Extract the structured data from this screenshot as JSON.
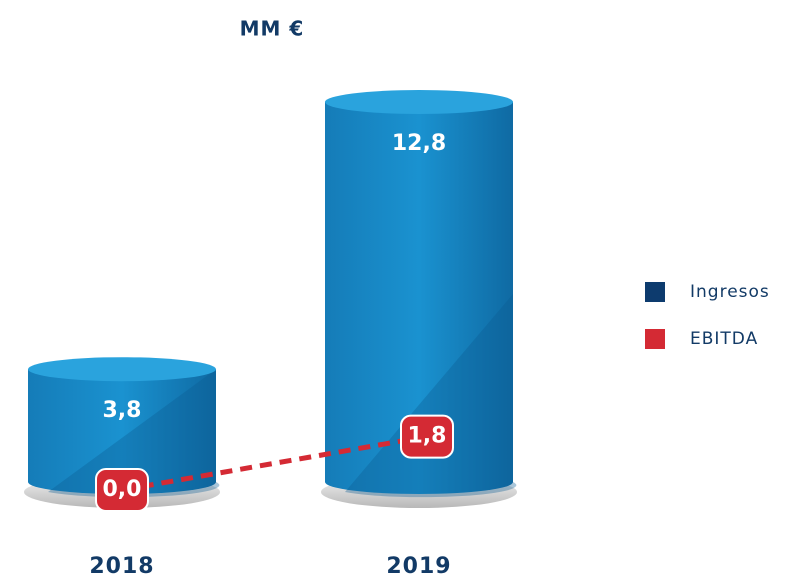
{
  "chart_data": {
    "type": "bar",
    "title": "MM €",
    "categories": [
      "2018",
      "2019"
    ],
    "series": [
      {
        "name": "Ingresos",
        "color": "#0d3b6e",
        "values": [
          3.8,
          12.8
        ],
        "value_labels": [
          "3,8",
          "12,8"
        ]
      },
      {
        "name": "EBITDA",
        "color": "#d42a34",
        "values": [
          0.0,
          1.8
        ],
        "value_labels": [
          "0,0",
          "1,8"
        ]
      }
    ],
    "legend": "right"
  }
}
